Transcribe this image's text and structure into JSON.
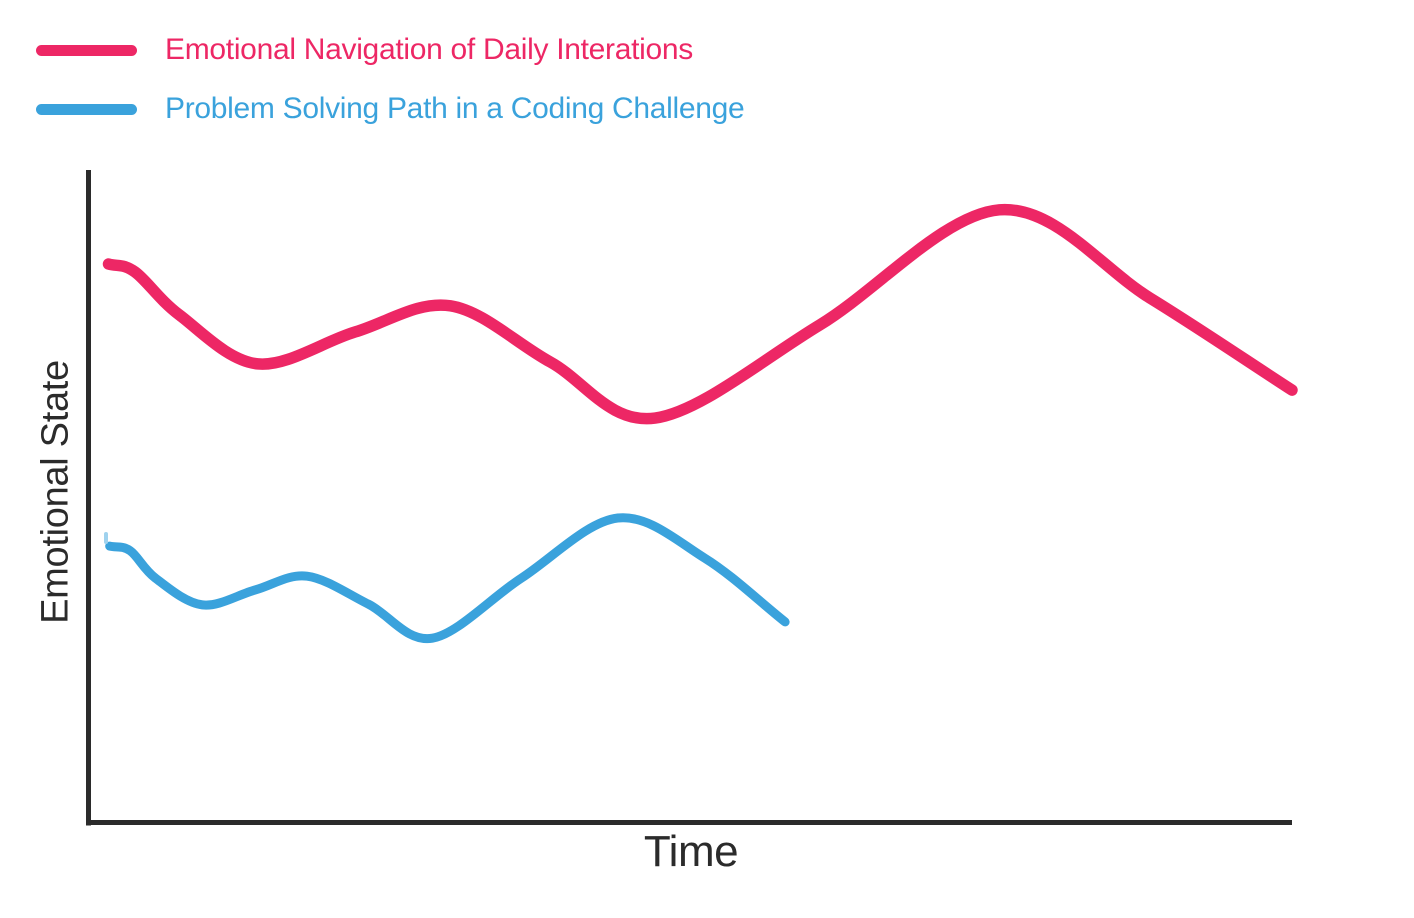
{
  "legend": {
    "items": [
      {
        "label": "Emotional Navigation of Daily Interations",
        "color": "#ED2765"
      },
      {
        "label": "Problem Solving Path in a Coding Challenge",
        "color": "#3AA2DC"
      }
    ]
  },
  "axes": {
    "x_label": "Time",
    "y_label": "Emotional State",
    "color": "#2B2B2B",
    "ticks": "none"
  },
  "chart_data": {
    "type": "line",
    "title": "",
    "xlabel": "Time",
    "ylabel": "Emotional State",
    "x_range": [
      0,
      1
    ],
    "ylim": [
      0,
      100
    ],
    "grid": false,
    "legend_position": "top-left",
    "axis_style": "L-shaped, no tick marks, no tick labels (qualitative sketch chart)",
    "line_style": "smooth curved waves, rounded line caps",
    "series": [
      {
        "name": "Emotional Navigation of Daily Interations",
        "color": "#ED2765",
        "stroke_width": 11.5,
        "points_note": "x = fraction of Time axis, y = estimated Emotional State 0-100",
        "points": [
          [
            0.017,
            85.6
          ],
          [
            0.039,
            84.4
          ],
          [
            0.076,
            77.8
          ],
          [
            0.141,
            70.3
          ],
          [
            0.222,
            75.2
          ],
          [
            0.301,
            79.2
          ],
          [
            0.384,
            70.6
          ],
          [
            0.471,
            62.0
          ],
          [
            0.608,
            76.3
          ],
          [
            0.757,
            93.9
          ],
          [
            0.882,
            80.4
          ],
          [
            1.0,
            66.3
          ]
        ]
      },
      {
        "name": "Problem Solving Path in a Coding Challenge",
        "color": "#3AA2DC",
        "stroke_width": 9,
        "points_note": "x = fraction of Time axis, y = estimated Emotional State 0-100",
        "points": [
          [
            0.018,
            42.4
          ],
          [
            0.035,
            41.7
          ],
          [
            0.056,
            37.5
          ],
          [
            0.095,
            33.4
          ],
          [
            0.139,
            35.7
          ],
          [
            0.182,
            37.8
          ],
          [
            0.233,
            33.5
          ],
          [
            0.286,
            28.3
          ],
          [
            0.36,
            37.5
          ],
          [
            0.44,
            46.7
          ],
          [
            0.512,
            40.6
          ],
          [
            0.579,
            30.8
          ]
        ]
      }
    ]
  }
}
